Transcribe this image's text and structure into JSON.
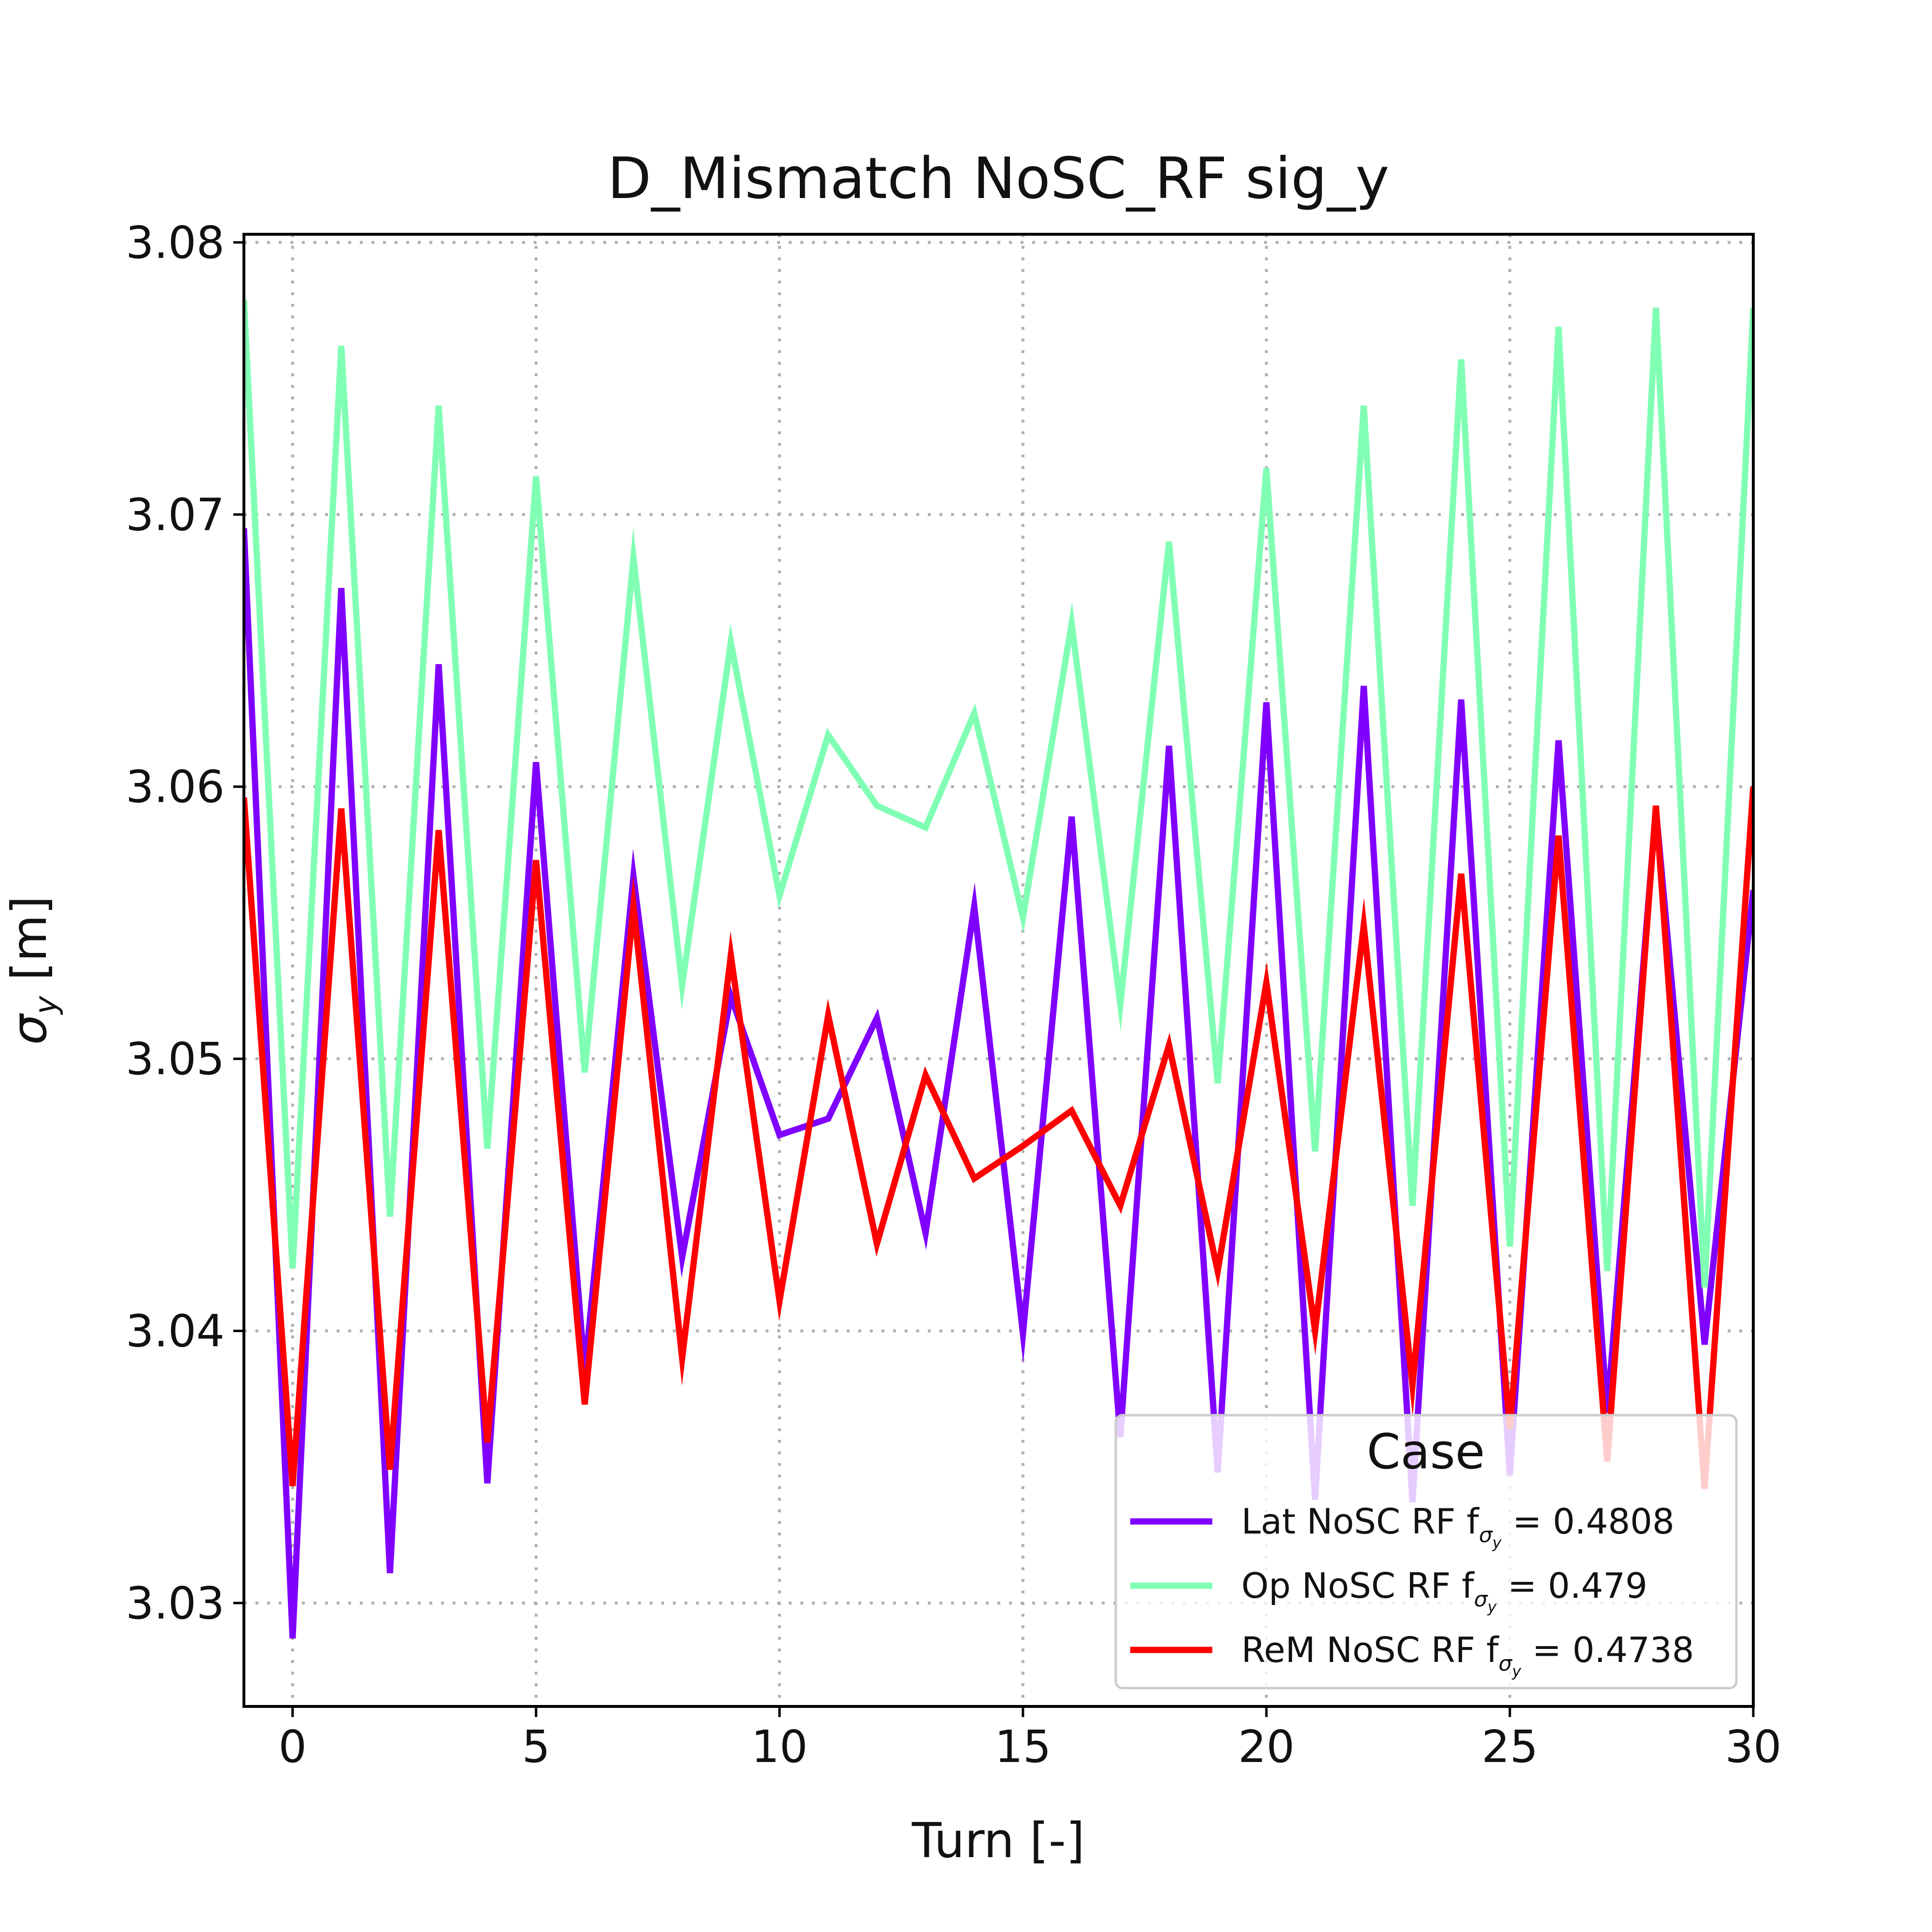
{
  "chart_data": {
    "type": "line",
    "title": "D_Mismatch NoSC_RF sig_y",
    "xlabel": "Turn [-]",
    "ylabel_main": "σ",
    "ylabel_sub": "y",
    "ylabel_unit": " [m]",
    "xlim": [
      -1,
      30
    ],
    "ylim": [
      3.0262,
      3.0803
    ],
    "xticks": [
      0,
      5,
      10,
      15,
      20,
      25,
      30
    ],
    "xtick_labels": [
      "0",
      "5",
      "10",
      "15",
      "20",
      "25",
      "30"
    ],
    "yticks": [
      3.03,
      3.04,
      3.05,
      3.06,
      3.07,
      3.08
    ],
    "ytick_labels": [
      "3.03",
      "3.04",
      "3.05",
      "3.06",
      "3.07",
      "3.08"
    ],
    "grid": true,
    "legend": {
      "title": "Case",
      "placement": "lower right"
    },
    "x": [
      -1,
      0,
      1,
      2,
      3,
      4,
      5,
      6,
      7,
      8,
      9,
      10,
      11,
      12,
      13,
      14,
      15,
      16,
      17,
      18,
      19,
      20,
      21,
      22,
      23,
      24,
      25,
      26,
      27,
      28,
      29,
      30
    ],
    "series": [
      {
        "name": "Lat NoSC RF",
        "legend_prefix": "Lat NoSC RF f",
        "legend_value": " = 0.4808",
        "color": "#8000ff",
        "values": [
          3.0695,
          3.0287,
          3.0673,
          3.0311,
          3.0645,
          3.0344,
          3.0609,
          3.0385,
          3.0567,
          3.0427,
          3.0523,
          3.0472,
          3.0478,
          3.0515,
          3.0436,
          3.0556,
          3.0399,
          3.0589,
          3.0361,
          3.0615,
          3.0348,
          3.0631,
          3.0338,
          3.0637,
          3.0337,
          3.0632,
          3.0347,
          3.0617,
          3.037,
          3.0592,
          3.0395,
          3.0562
        ]
      },
      {
        "name": "Op NoSC RF",
        "legend_prefix": "Op NoSC RF f",
        "legend_value": " = 0.479",
        "color": "#80ffb4",
        "values": [
          3.0779,
          3.0423,
          3.0762,
          3.0442,
          3.074,
          3.0467,
          3.0714,
          3.0495,
          3.0684,
          3.0527,
          3.0653,
          3.056,
          3.0619,
          3.0593,
          3.0585,
          3.0627,
          3.0552,
          3.066,
          3.052,
          3.069,
          3.0491,
          3.0717,
          3.0466,
          3.074,
          3.0446,
          3.0757,
          3.0431,
          3.0769,
          3.0422,
          3.0776,
          3.0416,
          3.0776
        ]
      },
      {
        "name": "ReM NoSC RF",
        "legend_prefix": "ReM NoSC RF f",
        "legend_value": " = 0.4738",
        "color": "#ff0000",
        "values": [
          3.0596,
          3.0343,
          3.0592,
          3.0349,
          3.0584,
          3.0359,
          3.0573,
          3.0373,
          3.0556,
          3.039,
          3.0538,
          3.0411,
          3.0516,
          3.0432,
          3.0494,
          3.0456,
          3.0468,
          3.0481,
          3.0446,
          3.0505,
          3.0422,
          3.0528,
          3.04,
          3.0549,
          3.038,
          3.0568,
          3.0364,
          3.0582,
          3.0352,
          3.0593,
          3.0342,
          3.06
        ]
      }
    ]
  }
}
